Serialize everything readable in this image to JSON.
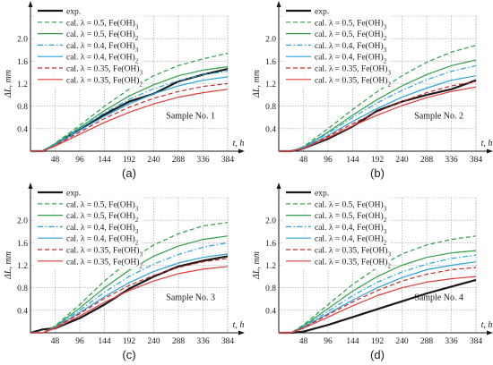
{
  "chart_data": [
    {
      "panel_label": "(a)",
      "type": "line",
      "xlabel": "t, h",
      "ylabel": "ΔL, mm",
      "xticks": [
        48,
        96,
        144,
        192,
        240,
        288,
        336,
        384
      ],
      "yticks": [
        "0.4",
        "0.8",
        "1.2",
        "1.6",
        "2.0"
      ],
      "xlim": [
        0,
        384
      ],
      "ylim": [
        0,
        2.4
      ],
      "grid": "on",
      "legend_placement": "top-left",
      "annotation": "Sample No. 1",
      "x": [
        0,
        24,
        48,
        96,
        144,
        192,
        240,
        288,
        336,
        384
      ],
      "series": [
        {
          "name": "exp.",
          "values": [
            0,
            0,
            0.12,
            0.38,
            0.65,
            0.88,
            1.02,
            1.24,
            1.36,
            1.46
          ]
        },
        {
          "name": "cal. λ = 0.5, Fe(OH)3",
          "values": [
            0,
            0,
            0.14,
            0.46,
            0.8,
            1.1,
            1.34,
            1.52,
            1.64,
            1.74
          ]
        },
        {
          "name": "cal. λ = 0.5, Fe(OH)2",
          "values": [
            0,
            0,
            0.13,
            0.42,
            0.72,
            0.98,
            1.18,
            1.34,
            1.44,
            1.5
          ]
        },
        {
          "name": "cal. λ = 0.4, Fe(OH)3",
          "values": [
            0,
            0,
            0.12,
            0.4,
            0.68,
            0.92,
            1.11,
            1.25,
            1.36,
            1.42
          ]
        },
        {
          "name": "cal. λ = 0.4, Fe(OH)2",
          "values": [
            0,
            0,
            0.11,
            0.37,
            0.62,
            0.84,
            1.02,
            1.16,
            1.26,
            1.32
          ]
        },
        {
          "name": "cal. λ = 0.35, Fe(OH)3",
          "values": [
            0,
            0,
            0.1,
            0.34,
            0.58,
            0.78,
            0.94,
            1.06,
            1.15,
            1.2
          ]
        },
        {
          "name": "cal. λ = 0.35, Fe(OH)2",
          "values": [
            0,
            0,
            0.09,
            0.3,
            0.51,
            0.69,
            0.84,
            0.96,
            1.04,
            1.1
          ]
        }
      ]
    },
    {
      "panel_label": "(b)",
      "type": "line",
      "xlabel": "t, h",
      "ylabel": "ΔL, mm",
      "xticks": [
        48,
        96,
        144,
        192,
        240,
        288,
        336,
        384
      ],
      "yticks": [
        "0.4",
        "0.8",
        "1.2",
        "1.6",
        "2.0"
      ],
      "xlim": [
        0,
        384
      ],
      "ylim": [
        0,
        2.4
      ],
      "grid": "on",
      "legend_placement": "top-left",
      "annotation": "Sample No. 2",
      "x": [
        0,
        24,
        48,
        96,
        144,
        192,
        240,
        288,
        336,
        384
      ],
      "series": [
        {
          "name": "exp.",
          "values": [
            0,
            0,
            0.05,
            0.22,
            0.44,
            0.72,
            0.88,
            1.0,
            1.1,
            1.26
          ]
        },
        {
          "name": "cal. λ = 0.5, Fe(OH)3",
          "values": [
            0,
            0,
            0.08,
            0.4,
            0.74,
            1.06,
            1.34,
            1.58,
            1.76,
            1.88
          ]
        },
        {
          "name": "cal. λ = 0.5, Fe(OH)2",
          "values": [
            0,
            0,
            0.07,
            0.34,
            0.64,
            0.92,
            1.16,
            1.36,
            1.52,
            1.62
          ]
        },
        {
          "name": "cal. λ = 0.4, Fe(OH)3",
          "values": [
            0,
            0,
            0.07,
            0.32,
            0.6,
            0.86,
            1.08,
            1.27,
            1.42,
            1.52
          ]
        },
        {
          "name": "cal. λ = 0.4, Fe(OH)2",
          "values": [
            0,
            0,
            0.06,
            0.28,
            0.53,
            0.76,
            0.96,
            1.12,
            1.26,
            1.34
          ]
        },
        {
          "name": "cal. λ = 0.35, Fe(OH)3",
          "values": [
            0,
            0,
            0.05,
            0.26,
            0.49,
            0.7,
            0.88,
            1.04,
            1.16,
            1.24
          ]
        },
        {
          "name": "cal. λ = 0.35, Fe(OH)2",
          "values": [
            0,
            0,
            0.05,
            0.24,
            0.45,
            0.64,
            0.81,
            0.95,
            1.06,
            1.14
          ]
        }
      ]
    },
    {
      "panel_label": "(c)",
      "type": "line",
      "xlabel": "t, h",
      "ylabel": "ΔL, mm",
      "xticks": [
        48,
        96,
        144,
        192,
        240,
        288,
        336,
        384
      ],
      "yticks": [
        "0.4",
        "0.8",
        "1.2",
        "1.6",
        "2.0"
      ],
      "xlim": [
        0,
        384
      ],
      "ylim": [
        0,
        2.4
      ],
      "grid": "on",
      "legend_placement": "top-left",
      "annotation": "Sample No. 3",
      "x": [
        0,
        24,
        48,
        96,
        144,
        192,
        240,
        288,
        336,
        384
      ],
      "series": [
        {
          "name": "exp.",
          "values": [
            0,
            0.06,
            0.08,
            0.26,
            0.5,
            0.78,
            1.0,
            1.18,
            1.28,
            1.36
          ]
        },
        {
          "name": "cal. λ = 0.5, Fe(OH)3",
          "values": [
            0,
            0,
            0.12,
            0.5,
            0.92,
            1.28,
            1.56,
            1.76,
            1.9,
            1.96
          ]
        },
        {
          "name": "cal. λ = 0.5, Fe(OH)2",
          "values": [
            0,
            0,
            0.11,
            0.44,
            0.8,
            1.11,
            1.36,
            1.54,
            1.66,
            1.72
          ]
        },
        {
          "name": "cal. λ = 0.4, Fe(OH)3",
          "values": [
            0,
            0,
            0.1,
            0.4,
            0.72,
            1.0,
            1.22,
            1.39,
            1.52,
            1.6
          ]
        },
        {
          "name": "cal. λ = 0.4, Fe(OH)2",
          "values": [
            0,
            0,
            0.09,
            0.36,
            0.64,
            0.89,
            1.09,
            1.24,
            1.34,
            1.4
          ]
        },
        {
          "name": "cal. λ = 0.35, Fe(OH)3",
          "values": [
            0,
            0,
            0.09,
            0.34,
            0.61,
            0.84,
            1.02,
            1.16,
            1.26,
            1.32
          ]
        },
        {
          "name": "cal. λ = 0.35, Fe(OH)2",
          "values": [
            0,
            0,
            0.08,
            0.3,
            0.54,
            0.75,
            0.92,
            1.05,
            1.13,
            1.18
          ]
        }
      ]
    },
    {
      "panel_label": "(d)",
      "type": "line",
      "xlabel": "t, h",
      "ylabel": "ΔL, mm",
      "xticks": [
        48,
        96,
        144,
        192,
        240,
        288,
        336,
        384
      ],
      "yticks": [
        "0.4",
        "0.8",
        "1.2",
        "1.6",
        "2.0"
      ],
      "xlim": [
        0,
        384
      ],
      "ylim": [
        0,
        2.4
      ],
      "grid": "on",
      "legend_placement": "top-left",
      "annotation": "Sample No. 4",
      "x": [
        0,
        24,
        48,
        96,
        144,
        192,
        240,
        288,
        336,
        384
      ],
      "series": [
        {
          "name": "exp.",
          "values": [
            0,
            0,
            0.02,
            0.14,
            0.28,
            0.42,
            0.56,
            0.7,
            0.82,
            0.94
          ]
        },
        {
          "name": "cal. λ = 0.5, Fe(OH)3",
          "values": [
            0,
            0,
            0.14,
            0.5,
            0.86,
            1.16,
            1.4,
            1.56,
            1.66,
            1.72
          ]
        },
        {
          "name": "cal. λ = 0.5, Fe(OH)2",
          "values": [
            0,
            0,
            0.12,
            0.43,
            0.74,
            1.0,
            1.2,
            1.34,
            1.42,
            1.46
          ]
        },
        {
          "name": "cal. λ = 0.4, Fe(OH)3",
          "values": [
            0,
            0,
            0.11,
            0.38,
            0.66,
            0.9,
            1.08,
            1.22,
            1.32,
            1.38
          ]
        },
        {
          "name": "cal. λ = 0.4, Fe(OH)2",
          "values": [
            0,
            0,
            0.1,
            0.34,
            0.58,
            0.8,
            0.98,
            1.12,
            1.2,
            1.26
          ]
        },
        {
          "name": "cal. λ = 0.35, Fe(OH)3",
          "values": [
            0,
            0,
            0.09,
            0.32,
            0.55,
            0.75,
            0.92,
            1.04,
            1.12,
            1.16
          ]
        },
        {
          "name": "cal. λ = 0.35, Fe(OH)2",
          "values": [
            0,
            0,
            0.08,
            0.28,
            0.48,
            0.66,
            0.8,
            0.9,
            0.96,
            1.0
          ]
        }
      ]
    }
  ],
  "series_style": [
    {
      "color": "#1a1a1a",
      "dash": "solid",
      "width": "thick"
    },
    {
      "color": "#2e9e48",
      "dash": "dashed",
      "width": "normal"
    },
    {
      "color": "#2e9e48",
      "dash": "solid",
      "width": "normal"
    },
    {
      "color": "#2aa3d9",
      "dash": "dashdot",
      "width": "normal"
    },
    {
      "color": "#2aa3d9",
      "dash": "solid",
      "width": "normal"
    },
    {
      "color": "#c42a2a",
      "dash": "dashed",
      "width": "normal"
    },
    {
      "color": "#e23a3a",
      "dash": "solid",
      "width": "normal"
    }
  ]
}
